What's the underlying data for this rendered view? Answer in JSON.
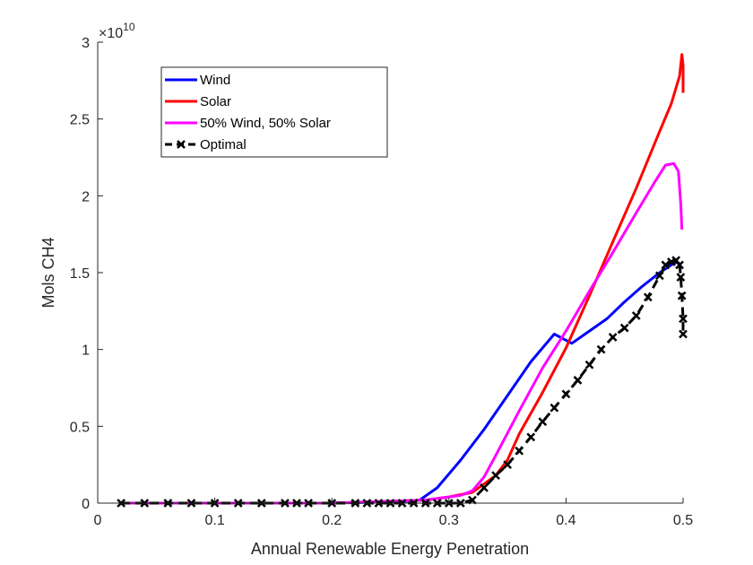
{
  "chart_data": {
    "type": "line",
    "title": "",
    "xlabel": "Annual Renewable Energy Penetration",
    "ylabel": "Mols CH4",
    "xlim": [
      0,
      0.5
    ],
    "ylim": [
      0,
      3
    ],
    "y_multiplier_label": {
      "base": "×10",
      "exponent": "10"
    },
    "xticks": [
      0,
      0.1,
      0.2,
      0.3,
      0.4,
      0.5
    ],
    "xtick_labels": [
      "0",
      "0.1",
      "0.2",
      "0.3",
      "0.4",
      "0.5"
    ],
    "yticks": [
      0,
      0.5,
      1,
      1.5,
      2,
      2.5,
      3
    ],
    "ytick_labels": [
      "0",
      "0.5",
      "1",
      "1.5",
      "2",
      "2.5",
      "3"
    ],
    "grid": false,
    "legend_position": "top-left",
    "series": [
      {
        "name": "Wind",
        "color": "#0000ff",
        "style": "solid",
        "x": [
          0.02,
          0.1,
          0.2,
          0.26,
          0.275,
          0.29,
          0.31,
          0.33,
          0.35,
          0.37,
          0.39,
          0.405,
          0.42,
          0.435,
          0.45,
          0.465,
          0.48,
          0.49,
          0.495
        ],
        "y": [
          0,
          0,
          0,
          0.01,
          0.02,
          0.1,
          0.28,
          0.48,
          0.7,
          0.92,
          1.1,
          1.04,
          1.12,
          1.2,
          1.31,
          1.41,
          1.5,
          1.55,
          1.57
        ]
      },
      {
        "name": "Solar",
        "color": "#ff0000",
        "style": "solid",
        "x": [
          0.02,
          0.1,
          0.2,
          0.28,
          0.3,
          0.32,
          0.34,
          0.35,
          0.36,
          0.38,
          0.4,
          0.42,
          0.44,
          0.46,
          0.48,
          0.49,
          0.497,
          0.499,
          0.5,
          0.5
        ],
        "y": [
          0,
          0,
          0,
          0.02,
          0.04,
          0.07,
          0.18,
          0.28,
          0.45,
          0.72,
          1.01,
          1.35,
          1.7,
          2.05,
          2.42,
          2.6,
          2.78,
          2.92,
          2.85,
          2.67
        ]
      },
      {
        "name": "50% Wind, 50% Solar",
        "color": "#ff00ff",
        "style": "solid",
        "x": [
          0.02,
          0.1,
          0.2,
          0.28,
          0.3,
          0.31,
          0.32,
          0.33,
          0.34,
          0.36,
          0.38,
          0.4,
          0.42,
          0.44,
          0.46,
          0.475,
          0.485,
          0.492,
          0.496,
          0.498,
          0.499
        ],
        "y": [
          0,
          0,
          0,
          0.02,
          0.04,
          0.05,
          0.08,
          0.17,
          0.31,
          0.6,
          0.88,
          1.12,
          1.38,
          1.63,
          1.89,
          2.08,
          2.2,
          2.21,
          2.16,
          1.95,
          1.78
        ]
      },
      {
        "name": "Optimal",
        "color": "#000000",
        "style": "dashed-x-markers",
        "x": [
          0.02,
          0.04,
          0.06,
          0.08,
          0.1,
          0.12,
          0.14,
          0.16,
          0.17,
          0.18,
          0.2,
          0.22,
          0.23,
          0.24,
          0.25,
          0.26,
          0.27,
          0.28,
          0.29,
          0.3,
          0.31,
          0.32,
          0.33,
          0.34,
          0.35,
          0.36,
          0.37,
          0.38,
          0.39,
          0.4,
          0.41,
          0.42,
          0.43,
          0.44,
          0.45,
          0.46,
          0.47,
          0.48,
          0.485,
          0.49,
          0.494,
          0.497,
          0.498,
          0.499,
          0.5,
          0.5
        ],
        "y": [
          0,
          0,
          0,
          0,
          0,
          0,
          0,
          0,
          0,
          0,
          0,
          0,
          0,
          0,
          0,
          0,
          0,
          0,
          0,
          0,
          0,
          0.02,
          0.1,
          0.18,
          0.25,
          0.34,
          0.43,
          0.53,
          0.62,
          0.71,
          0.8,
          0.9,
          1.0,
          1.08,
          1.14,
          1.22,
          1.34,
          1.48,
          1.55,
          1.57,
          1.58,
          1.55,
          1.47,
          1.35,
          1.2,
          1.1
        ]
      }
    ]
  }
}
